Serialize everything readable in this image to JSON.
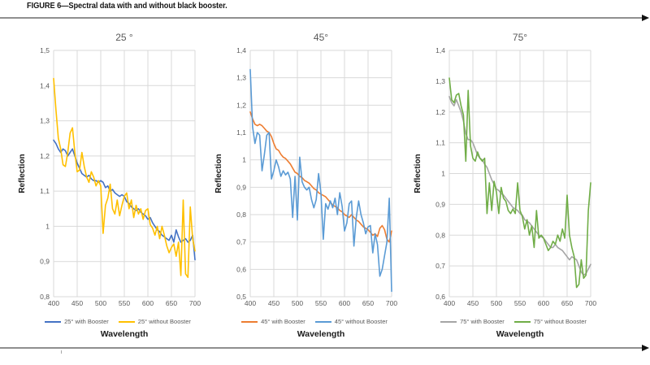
{
  "figure": {
    "caption": "FIGURE 6—Spectral data with and without black booster."
  },
  "chart_data": [
    {
      "type": "line",
      "title": "25 °",
      "ylabel": "Reflection",
      "xlabel": "Wavelength",
      "ylim": [
        0.8,
        1.5
      ],
      "ytick_step": 0.1,
      "xlim": [
        400,
        700
      ],
      "xtick_step": 50,
      "x_start": 400,
      "x_step": 5,
      "grid": true,
      "legend_position": "bottom",
      "series": [
        {
          "name": "25° with Booster",
          "color": "#4472C4",
          "values": [
            1.245,
            1.235,
            1.22,
            1.21,
            1.22,
            1.215,
            1.2,
            1.21,
            1.22,
            1.2,
            1.18,
            1.165,
            1.15,
            1.145,
            1.14,
            1.145,
            1.135,
            1.13,
            1.13,
            1.125,
            1.13,
            1.125,
            1.11,
            1.115,
            1.1,
            1.105,
            1.095,
            1.09,
            1.085,
            1.09,
            1.085,
            1.07,
            1.065,
            1.055,
            1.05,
            1.045,
            1.05,
            1.04,
            1.035,
            1.03,
            1.02,
            1.025,
            1.01,
            1.0,
            0.99,
            0.985,
            0.975,
            0.97,
            0.965,
            0.96,
            0.975,
            0.955,
            0.99,
            0.97,
            0.955,
            0.96,
            0.965,
            0.955,
            0.96,
            0.975,
            0.905
          ]
        },
        {
          "name": "25° without Booster",
          "color": "#FFC000",
          "values": [
            1.42,
            1.33,
            1.25,
            1.22,
            1.175,
            1.17,
            1.21,
            1.265,
            1.28,
            1.21,
            1.155,
            1.16,
            1.21,
            1.17,
            1.14,
            1.125,
            1.155,
            1.14,
            1.115,
            1.13,
            1.115,
            0.98,
            1.06,
            1.08,
            1.12,
            1.05,
            1.035,
            1.075,
            1.03,
            1.06,
            1.085,
            1.095,
            1.05,
            1.075,
            1.025,
            1.06,
            1.035,
            1.05,
            1.02,
            1.045,
            1.05,
            1.005,
            0.995,
            0.975,
            1.0,
            0.965,
            1.0,
            0.975,
            0.945,
            0.925,
            0.94,
            0.95,
            0.915,
            0.955,
            0.86,
            1.075,
            0.865,
            0.855,
            1.055,
            0.965,
            0.93
          ]
        }
      ]
    },
    {
      "type": "line",
      "title": "45°",
      "ylabel": "Reflection",
      "xlabel": "Wavelength",
      "ylim": [
        0.5,
        1.4
      ],
      "ytick_step": 0.1,
      "xlim": [
        400,
        700
      ],
      "xtick_step": 50,
      "x_start": 400,
      "x_step": 5,
      "grid": true,
      "legend_position": "bottom",
      "series": [
        {
          "name": "45° with Booster",
          "color": "#ED7D31",
          "values": [
            1.175,
            1.15,
            1.13,
            1.125,
            1.13,
            1.125,
            1.115,
            1.105,
            1.1,
            1.085,
            1.06,
            1.04,
            1.035,
            1.02,
            1.01,
            1.005,
            0.995,
            0.985,
            0.97,
            0.955,
            0.95,
            0.94,
            0.935,
            0.925,
            0.92,
            0.915,
            0.905,
            0.895,
            0.89,
            0.88,
            0.875,
            0.87,
            0.865,
            0.855,
            0.845,
            0.835,
            0.83,
            0.825,
            0.815,
            0.81,
            0.8,
            0.795,
            0.79,
            0.8,
            0.79,
            0.78,
            0.775,
            0.765,
            0.755,
            0.75,
            0.745,
            0.735,
            0.725,
            0.73,
            0.72,
            0.75,
            0.76,
            0.745,
            0.71,
            0.7,
            0.74
          ]
        },
        {
          "name": "45° without Booster",
          "color": "#5B9BD5",
          "values": [
            1.33,
            1.12,
            1.06,
            1.1,
            1.09,
            0.96,
            1.02,
            1.09,
            1.1,
            0.93,
            0.96,
            1.0,
            0.975,
            0.94,
            0.96,
            0.945,
            0.955,
            0.93,
            0.79,
            0.94,
            0.78,
            1.01,
            0.92,
            0.9,
            0.89,
            0.9,
            0.855,
            0.825,
            0.855,
            0.95,
            0.88,
            0.71,
            0.84,
            0.82,
            0.85,
            0.825,
            0.86,
            0.8,
            0.88,
            0.83,
            0.74,
            0.77,
            0.84,
            0.85,
            0.685,
            0.79,
            0.85,
            0.8,
            0.77,
            0.73,
            0.755,
            0.76,
            0.66,
            0.73,
            0.69,
            0.575,
            0.6,
            0.65,
            0.7,
            0.86,
            0.52
          ]
        }
      ]
    },
    {
      "type": "line",
      "title": "75°",
      "ylabel": "Reflection",
      "xlabel": "Wavelength",
      "ylim": [
        0.6,
        1.4
      ],
      "ytick_step": 0.1,
      "xlim": [
        400,
        700
      ],
      "xtick_step": 50,
      "x_start": 400,
      "x_step": 5,
      "grid": true,
      "legend_position": "bottom",
      "series": [
        {
          "name": "75° with Booster",
          "color": "#A5A5A5",
          "values": [
            1.25,
            1.23,
            1.22,
            1.24,
            1.22,
            1.2,
            1.17,
            1.13,
            1.11,
            1.11,
            1.1,
            1.08,
            1.06,
            1.05,
            1.045,
            1.03,
            1.02,
            1.0,
            0.98,
            0.965,
            0.95,
            0.945,
            0.935,
            0.93,
            0.92,
            0.91,
            0.9,
            0.89,
            0.885,
            0.88,
            0.87,
            0.865,
            0.85,
            0.845,
            0.84,
            0.83,
            0.82,
            0.81,
            0.8,
            0.795,
            0.79,
            0.78,
            0.77,
            0.76,
            0.76,
            0.77,
            0.76,
            0.755,
            0.75,
            0.74,
            0.73,
            0.72,
            0.73,
            0.725,
            0.72,
            0.7,
            0.68,
            0.67,
            0.675,
            0.69,
            0.705
          ]
        },
        {
          "name": "75° without Booster",
          "color": "#70AD47",
          "values": [
            1.31,
            1.24,
            1.23,
            1.255,
            1.26,
            1.22,
            1.19,
            1.04,
            1.27,
            1.09,
            1.05,
            1.04,
            1.07,
            1.05,
            1.04,
            1.05,
            0.87,
            0.97,
            0.88,
            0.975,
            0.94,
            0.87,
            0.955,
            0.92,
            0.91,
            0.88,
            0.87,
            0.885,
            0.87,
            0.97,
            0.88,
            0.86,
            0.82,
            0.85,
            0.8,
            0.83,
            0.76,
            0.88,
            0.79,
            0.8,
            0.79,
            0.77,
            0.75,
            0.76,
            0.78,
            0.77,
            0.8,
            0.78,
            0.82,
            0.79,
            0.93,
            0.8,
            0.76,
            0.73,
            0.63,
            0.64,
            0.72,
            0.66,
            0.67,
            0.88,
            0.97
          ]
        }
      ]
    }
  ]
}
